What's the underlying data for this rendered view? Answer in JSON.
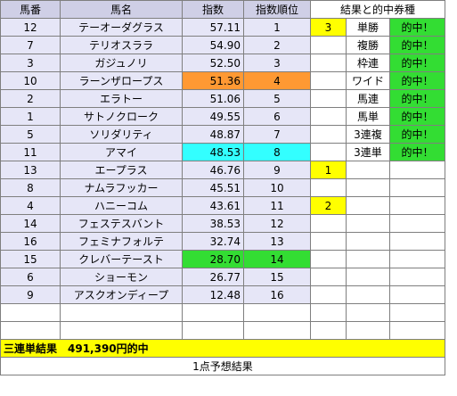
{
  "header": {
    "umaban": "馬番",
    "bamei": "馬名",
    "shisu": "指数",
    "juni": "指数順位",
    "kekka": "結果と的中券種"
  },
  "horses": [
    {
      "num": "12",
      "name": "テーオーダグラス",
      "index": "57.11",
      "rank": "1",
      "finish": "3",
      "bet": "単勝",
      "hit": "的中！"
    },
    {
      "num": "7",
      "name": "テリオスララ",
      "index": "54.90",
      "rank": "2",
      "finish": "",
      "bet": "複勝",
      "hit": "的中！"
    },
    {
      "num": "3",
      "name": "ガジュノリ",
      "index": "52.50",
      "rank": "3",
      "finish": "",
      "bet": "枠連",
      "hit": "的中！"
    },
    {
      "num": "10",
      "name": "ラーンザロープス",
      "index": "51.36",
      "rank": "4",
      "finish": "",
      "bet": "ワイド",
      "hit": "的中！"
    },
    {
      "num": "2",
      "name": "エラトー",
      "index": "51.06",
      "rank": "5",
      "finish": "",
      "bet": "馬連",
      "hit": "的中！"
    },
    {
      "num": "1",
      "name": "サトノクローク",
      "index": "49.55",
      "rank": "6",
      "finish": "",
      "bet": "馬単",
      "hit": "的中！"
    },
    {
      "num": "5",
      "name": "ソリダリティ",
      "index": "48.87",
      "rank": "7",
      "finish": "",
      "bet": "3連複",
      "hit": "的中！"
    },
    {
      "num": "11",
      "name": "アマイ",
      "index": "48.53",
      "rank": "8",
      "finish": "",
      "bet": "3連単",
      "hit": "的中！"
    },
    {
      "num": "13",
      "name": "エープラス",
      "index": "46.76",
      "rank": "9",
      "finish": "1",
      "bet": "",
      "hit": ""
    },
    {
      "num": "8",
      "name": "ナムラフッカー",
      "index": "45.51",
      "rank": "10",
      "finish": "",
      "bet": "",
      "hit": ""
    },
    {
      "num": "4",
      "name": "ハニーコム",
      "index": "43.61",
      "rank": "11",
      "finish": "2",
      "bet": "",
      "hit": ""
    },
    {
      "num": "14",
      "name": "フェステスバント",
      "index": "38.53",
      "rank": "12",
      "finish": "",
      "bet": "",
      "hit": ""
    },
    {
      "num": "16",
      "name": "フェミナフォルテ",
      "index": "32.74",
      "rank": "13",
      "finish": "",
      "bet": "",
      "hit": ""
    },
    {
      "num": "15",
      "name": "クレバーテースト",
      "index": "28.70",
      "rank": "14",
      "finish": "",
      "bet": "",
      "hit": ""
    },
    {
      "num": "6",
      "name": "ショーモン",
      "index": "26.77",
      "rank": "15",
      "finish": "",
      "bet": "",
      "hit": ""
    },
    {
      "num": "9",
      "name": "アスクオンディープ",
      "index": "12.48",
      "rank": "16",
      "finish": "",
      "bet": "",
      "hit": ""
    }
  ],
  "summary": {
    "result": "三連単結果　491,390円的中",
    "footer": "1点予想結果"
  },
  "colors": {
    "header": "#cfcfe6",
    "row_bg": "#e6e6f7",
    "rank4_highlight": "#ff9933",
    "rank8_highlight": "#33ffff",
    "rank14_highlight": "#33dd33",
    "hit": "#33dd33",
    "finish": "#ffff00"
  }
}
